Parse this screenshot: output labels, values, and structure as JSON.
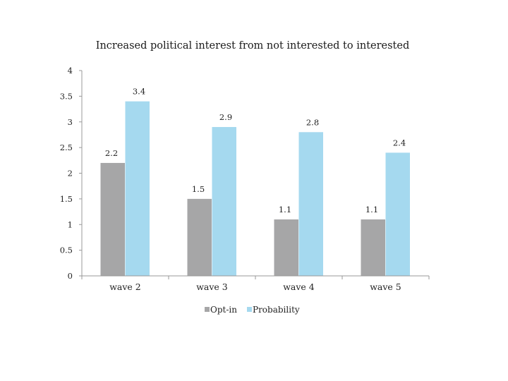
{
  "chart_data": {
    "type": "bar",
    "title": "Increased political interest from not interested to interested",
    "categories": [
      "wave 2",
      "wave 3",
      "wave 4",
      "wave 5"
    ],
    "series": [
      {
        "name": "Opt-in",
        "values": [
          2.2,
          1.5,
          1.1,
          1.1
        ],
        "color": "#a6a6a7"
      },
      {
        "name": "Probability",
        "values": [
          3.4,
          2.9,
          2.8,
          2.4
        ],
        "color": "#a5d9ef"
      }
    ],
    "data_labels": [
      [
        "2.2",
        "1.5",
        "1.1",
        "1.1"
      ],
      [
        "3.4",
        "2.9",
        "2.8",
        "2.4"
      ]
    ],
    "ylim": [
      0,
      4
    ],
    "yticks": [
      0,
      0.5,
      1,
      1.5,
      2,
      2.5,
      3,
      3.5,
      4
    ],
    "ytick_labels": [
      "0",
      "0.5",
      "1",
      "1.5",
      "2",
      "2.5",
      "3",
      "3.5",
      "4"
    ],
    "xlabel": "",
    "ylabel": "",
    "grid": false,
    "legend_position": "bottom"
  }
}
